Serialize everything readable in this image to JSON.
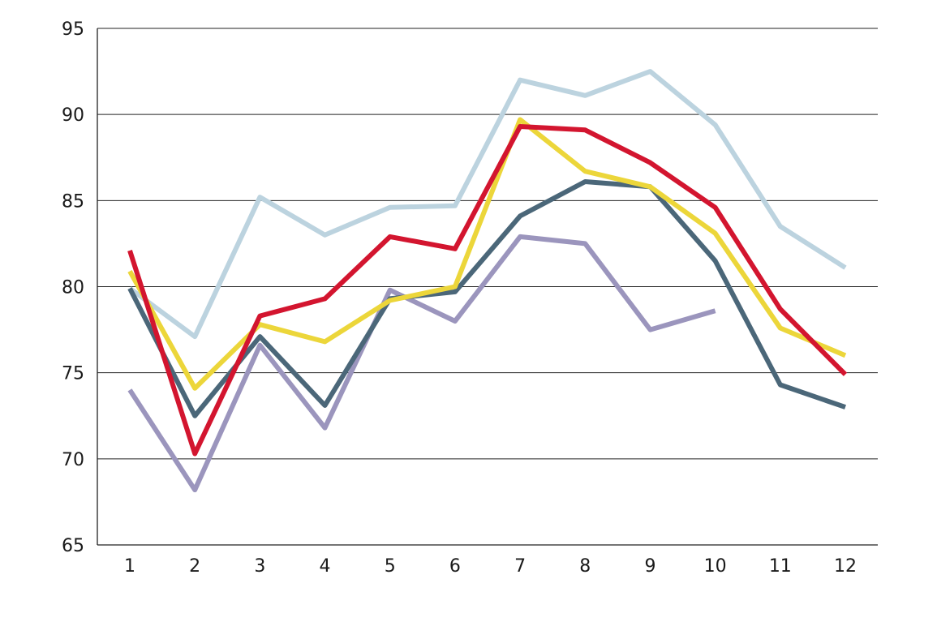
{
  "chart_data": {
    "type": "line",
    "title": "",
    "xlabel": "",
    "ylabel": "",
    "x": [
      1,
      2,
      3,
      4,
      5,
      6,
      7,
      8,
      9,
      10,
      11,
      12
    ],
    "x_tick_labels": [
      "1",
      "2",
      "3",
      "4",
      "5",
      "6",
      "7",
      "8",
      "9",
      "10",
      "11",
      "12"
    ],
    "ylim": [
      65,
      95
    ],
    "y_ticks": [
      65,
      70,
      75,
      80,
      85,
      90,
      95
    ],
    "y_tick_labels": [
      "65",
      "70",
      "75",
      "80",
      "85",
      "90",
      "95"
    ],
    "grid": "horizontal",
    "legend": "none",
    "series": [
      {
        "color": "#bcd3df",
        "values": [
          79.9,
          77.1,
          85.2,
          83.0,
          84.6,
          84.7,
          92.0,
          91.1,
          92.5,
          89.4,
          83.5,
          81.1
        ]
      },
      {
        "color": "#9b95bd",
        "values": [
          74.0,
          68.2,
          76.6,
          71.8,
          79.8,
          78.0,
          82.9,
          82.5,
          77.5,
          78.6,
          null,
          null
        ]
      },
      {
        "color": "#4b6779",
        "values": [
          79.9,
          72.5,
          77.1,
          73.1,
          79.3,
          79.7,
          84.1,
          86.1,
          85.8,
          81.5,
          74.3,
          73.0
        ]
      },
      {
        "color": "#ecd63a",
        "values": [
          80.9,
          74.1,
          77.8,
          76.8,
          79.2,
          80.0,
          89.7,
          86.7,
          85.8,
          83.1,
          77.6,
          76.0
        ]
      },
      {
        "color": "#d3152f",
        "values": [
          82.1,
          70.3,
          78.3,
          79.3,
          82.9,
          82.2,
          89.3,
          89.1,
          87.2,
          84.6,
          78.7,
          74.9
        ]
      }
    ]
  }
}
